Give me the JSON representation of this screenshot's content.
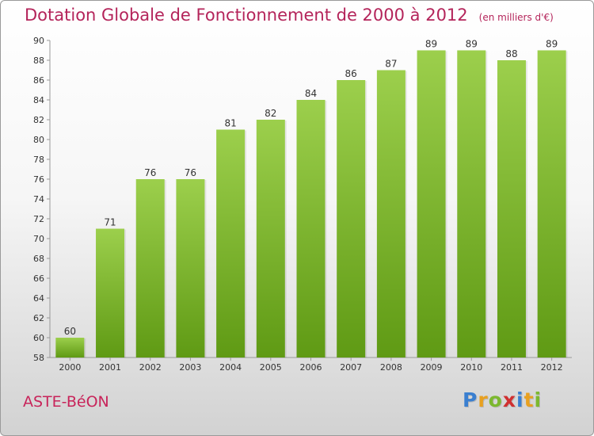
{
  "title": "Dotation Globale de Fonctionnement de 2000 à 2012",
  "subtitle": "(en milliers d'€)",
  "commune": "ASTE-BéON",
  "logo": {
    "letters": [
      "P",
      "r",
      "o",
      "x",
      "i",
      "t",
      "i"
    ],
    "colors": [
      "#3a7fd0",
      "#e8a020",
      "#7cb82f",
      "#d03030",
      "#3a7fd0",
      "#e8a020",
      "#7cb82f"
    ]
  },
  "colors": {
    "bar_top": "#9ccf4c",
    "bar_bottom": "#5f9a14",
    "title": "#b4245a"
  },
  "chart_data": {
    "type": "bar",
    "categories": [
      "2000",
      "2001",
      "2002",
      "2003",
      "2004",
      "2005",
      "2006",
      "2007",
      "2008",
      "2009",
      "2010",
      "2011",
      "2012"
    ],
    "values": [
      60,
      71,
      76,
      76,
      81,
      82,
      84,
      86,
      87,
      89,
      89,
      88,
      89
    ],
    "ylim": [
      58,
      90
    ],
    "yticks": [
      58,
      60,
      62,
      64,
      66,
      68,
      70,
      72,
      74,
      76,
      78,
      80,
      82,
      84,
      86,
      88,
      90
    ],
    "grid": false,
    "data_labels": true
  }
}
